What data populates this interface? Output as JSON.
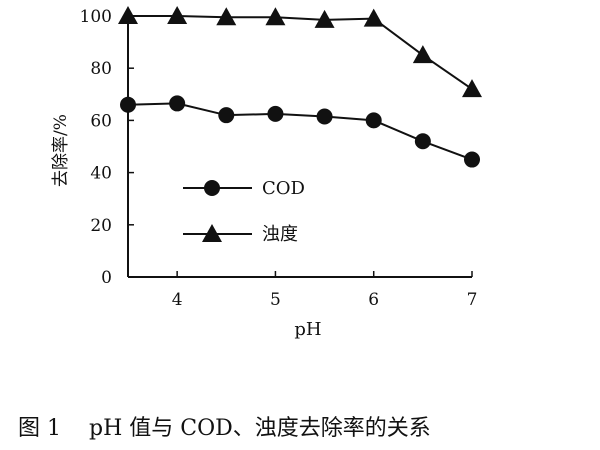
{
  "chart_data": {
    "type": "line",
    "xlabel": "pH",
    "ylabel": "去除率/%",
    "xlim": [
      3.5,
      7
    ],
    "ylim": [
      0,
      100
    ],
    "x_ticks": [
      4,
      5,
      6,
      7
    ],
    "y_ticks": [
      0,
      20,
      40,
      60,
      80,
      100
    ],
    "grid": false,
    "legend_position": "left-center",
    "series": [
      {
        "name": "COD",
        "marker": "circle",
        "color": "#111111",
        "x": [
          3.5,
          4,
          4.5,
          5,
          5.5,
          6,
          6.5,
          7
        ],
        "y": [
          66,
          66.5,
          62,
          62.5,
          61.5,
          60,
          52,
          45
        ]
      },
      {
        "name": "浊度",
        "marker": "triangle",
        "color": "#111111",
        "x": [
          3.5,
          4,
          4.5,
          5,
          5.5,
          6,
          6.5,
          7
        ],
        "y": [
          100,
          100,
          99.5,
          99.5,
          98.5,
          99,
          85,
          72
        ]
      }
    ]
  },
  "caption": {
    "figure_number": "图 1",
    "text": "pH 值与 COD、浊度去除率的关系"
  }
}
